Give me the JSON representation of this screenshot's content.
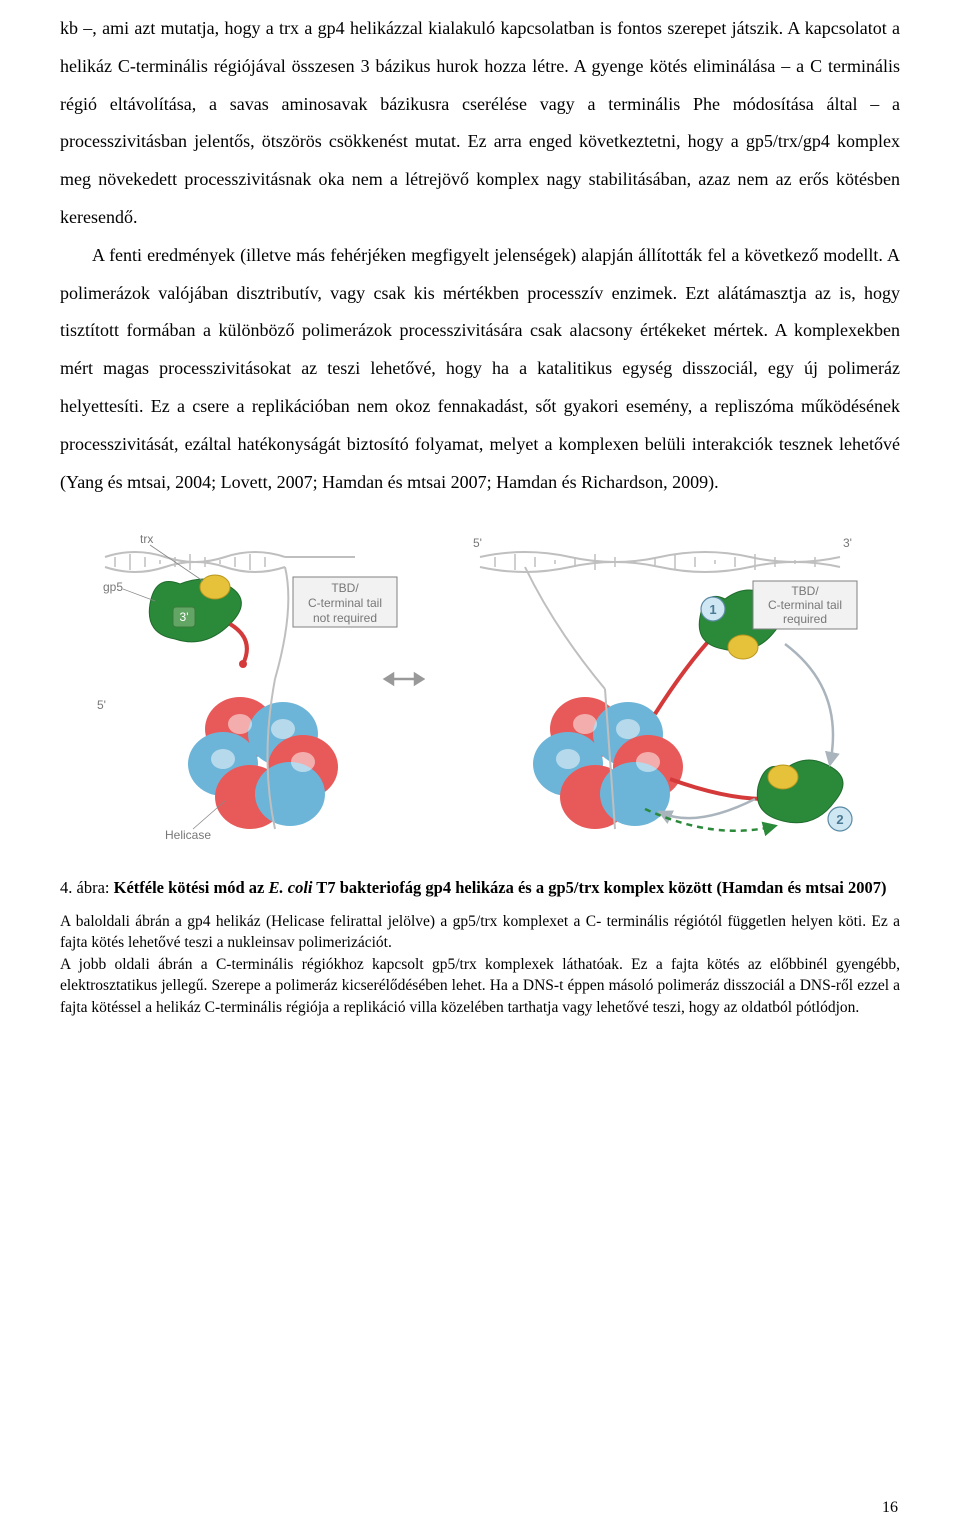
{
  "paragraphs": {
    "p1": "kb –, ami azt mutatja, hogy a trx a gp4 helikázzal kialakuló kapcsolatban is fontos szerepet játszik. A kapcsolatot a helikáz C-terminális régiójával összesen 3 bázikus hurok hozza létre. A gyenge kötés eliminálása – a C terminális régió eltávolítása, a savas aminosavak bázikusra cserélése vagy a terminális Phe módosítása által – a processzivitásban jelentős, ötszörös csökkenést mutat. Ez arra enged következtetni, hogy a gp5/trx/gp4 komplex meg növekedett processzivitásnak oka nem a létrejövő komplex nagy stabilitásában, azaz nem az erős kötésben keresendő.",
    "p2": "A fenti eredmények (illetve más fehérjéken megfigyelt jelenségek) alapján állították fel a következő modellt. A polimerázok valójában disztributív, vagy csak kis mértékben processzív enzimek. Ezt alátámasztja az is, hogy tisztított formában a különböző polimerázok processzivitására csak alacsony értékeket mértek. A komplexekben mért magas processzivitásokat az teszi lehetővé, hogy ha a katalitikus egység disszociál, egy új polimeráz helyettesíti. Ez a csere a replikációban nem okoz fennakadást, sőt gyakori esemény, a repliszóma működésének processzivitását, ezáltal hatékonyságát biztosító folyamat, melyet a komplexen belüli interakciók tesznek lehetővé (Yang és mtsai, 2004; Lovett, 2007; Hamdan és mtsai 2007; Hamdan és Richardson, 2009)."
  },
  "figure": {
    "left": {
      "labels": {
        "trx": "trx",
        "gp5": "gp5",
        "helicase": "Helicase",
        "five": "5'",
        "three": "3'"
      },
      "box": {
        "line1": "TBD/",
        "line2": "C-terminal tail",
        "line3": "not required"
      },
      "colors": {
        "gp5": "#2a8a3a",
        "trx": "#e6c23a",
        "helicase_a": "#e85a5a",
        "helicase_b": "#6db5d8",
        "dna": "#bfbfbf",
        "box_fill": "#f2f2f2",
        "box_stroke": "#808080"
      }
    },
    "right": {
      "labels": {
        "five": "5'",
        "three": "3'",
        "one": "1",
        "two": "2"
      },
      "box": {
        "line1": "TBD/",
        "line2": "C-terminal tail",
        "line3": "required"
      },
      "colors": {
        "gp5": "#2a8a3a",
        "trx": "#e6c23a",
        "helicase_a": "#e85a5a",
        "helicase_b": "#6db5d8",
        "dna": "#bfbfbf",
        "box_fill": "#f2f2f2",
        "box_stroke": "#808080",
        "circle_fill": "#cfe7f2",
        "circle_stroke": "#5a8aa5",
        "circle_text": "#4a7a94"
      }
    }
  },
  "caption": {
    "lead": "4. ábra: ",
    "bold_a": "Kétféle kötési mód az ",
    "ital": "E. coli",
    "bold_b": " T7 bakteriofág gp4 helikáza és a gp5/trx komplex között (Hamdan és mtsai 2007)",
    "body": "A baloldali ábrán a gp4 helikáz (Helicase felirattal jelölve) a gp5/trx komplexet a C- terminális régiótól független helyen köti. Ez a fajta kötés lehetővé teszi a nukleinsav polimerizációt.\nA jobb oldali ábrán a C-terminális régiókhoz kapcsolt gp5/trx komplexek láthatóak. Ez a fajta kötés az előbbinél gyengébb, elektrosztatikus jellegű. Szerepe a polimeráz kicserélődésében lehet. Ha a DNS-t éppen másoló polimeráz disszociál a DNS-ről ezzel a fajta kötéssel a helikáz C-terminális régiója a replikáció villa közelében tarthatja vagy lehetővé teszi, hogy az oldatból pótlódjon."
  },
  "page_number": "16"
}
